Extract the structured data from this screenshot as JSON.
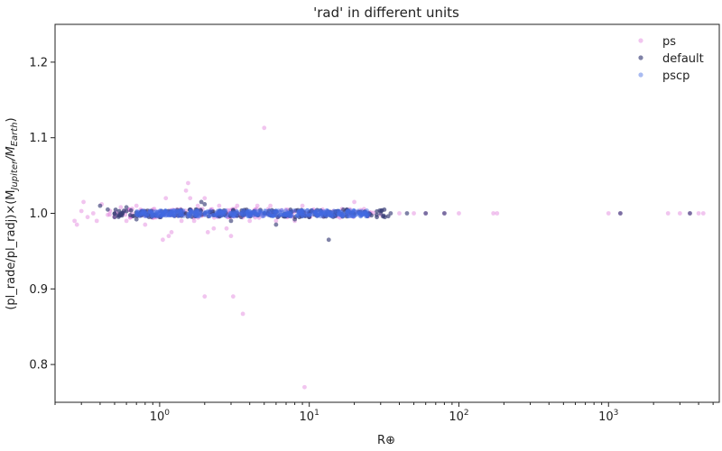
{
  "chart_data": {
    "type": "scatter",
    "title": "'rad' in different units",
    "xlabel": "R⊕",
    "ylabel_main": "(pl_rade/pl_radj)×(M",
    "ylabel_sub1": "Jupiter",
    "ylabel_mid": "/M",
    "ylabel_sub2": "Earth",
    "ylabel_end": ")",
    "xscale": "log",
    "xlim": [
      0.2,
      5500
    ],
    "ylim": [
      0.75,
      1.25
    ],
    "x_ticks": [
      {
        "value": 1,
        "base": "10",
        "exp": "0"
      },
      {
        "value": 10,
        "base": "10",
        "exp": "1"
      },
      {
        "value": 100,
        "base": "10",
        "exp": "2"
      },
      {
        "value": 1000,
        "base": "10",
        "exp": "3"
      }
    ],
    "y_ticks": [
      "0.8",
      "0.9",
      "1.0",
      "1.1",
      "1.2"
    ],
    "grid": false,
    "legend_position": "top-right",
    "series": [
      {
        "name": "ps",
        "color": "#e07fdc",
        "opacity": 0.35,
        "points": [
          [
            0.27,
            0.99
          ],
          [
            0.28,
            0.985
          ],
          [
            0.3,
            1.003
          ],
          [
            0.31,
            1.015
          ],
          [
            0.33,
            0.995
          ],
          [
            0.36,
            1.0
          ],
          [
            0.38,
            0.99
          ],
          [
            0.41,
            1.012
          ],
          [
            0.45,
            0.998
          ],
          [
            0.5,
            0.995
          ],
          [
            0.55,
            1.008
          ],
          [
            0.6,
            0.99
          ],
          [
            0.65,
            1.0
          ],
          [
            0.7,
            1.01
          ],
          [
            0.8,
            0.985
          ],
          [
            0.9,
            1.005
          ],
          [
            1.0,
            0.995
          ],
          [
            1.05,
            0.965
          ],
          [
            1.1,
            1.02
          ],
          [
            1.15,
            0.97
          ],
          [
            1.2,
            0.975
          ],
          [
            1.3,
            1.005
          ],
          [
            1.4,
            0.99
          ],
          [
            1.5,
            1.03
          ],
          [
            1.55,
            1.04
          ],
          [
            1.6,
            1.02
          ],
          [
            1.7,
            0.99
          ],
          [
            1.8,
            1.01
          ],
          [
            2.0,
            0.89
          ],
          [
            2.0,
            1.02
          ],
          [
            2.1,
            0.975
          ],
          [
            2.2,
            1.0
          ],
          [
            2.3,
            0.98
          ],
          [
            2.5,
            1.01
          ],
          [
            2.8,
            0.98
          ],
          [
            3.0,
            0.97
          ],
          [
            3.1,
            0.89
          ],
          [
            3.3,
            1.01
          ],
          [
            3.6,
            0.867
          ],
          [
            4.0,
            0.99
          ],
          [
            4.5,
            1.01
          ],
          [
            5.0,
            1.113
          ],
          [
            5.5,
            1.01
          ],
          [
            6.0,
            0.99
          ],
          [
            7.0,
            1.005
          ],
          [
            8.0,
            0.99
          ],
          [
            9.0,
            1.01
          ],
          [
            9.3,
            0.77
          ],
          [
            10.0,
            1.0
          ],
          [
            12.0,
            1.0
          ],
          [
            15.0,
            1.0
          ],
          [
            20.0,
            1.015
          ],
          [
            25.0,
            1.0
          ],
          [
            30.0,
            0.998
          ],
          [
            40.0,
            1.0
          ],
          [
            50.0,
            1.0
          ],
          [
            60.0,
            1.0
          ],
          [
            80.0,
            1.0
          ],
          [
            100.0,
            1.0
          ],
          [
            170.0,
            1.0
          ],
          [
            180.0,
            1.0
          ],
          [
            1000.0,
            1.0
          ],
          [
            1200.0,
            1.0
          ],
          [
            2500.0,
            1.0
          ],
          [
            3000.0,
            1.0
          ],
          [
            3500.0,
            1.0
          ],
          [
            4000.0,
            1.0
          ],
          [
            4300.0,
            1.0
          ]
        ]
      },
      {
        "name": "default",
        "color": "#3b3f78",
        "opacity": 0.55,
        "points": [
          [
            0.4,
            1.01
          ],
          [
            0.45,
            1.005
          ],
          [
            0.5,
            0.995
          ],
          [
            0.55,
            1.0
          ],
          [
            0.6,
            1.008
          ],
          [
            0.7,
            0.992
          ],
          [
            0.8,
            1.003
          ],
          [
            1.0,
            0.995
          ],
          [
            1.2,
            0.998
          ],
          [
            1.5,
            1.0
          ],
          [
            1.9,
            1.015
          ],
          [
            2.0,
            1.012
          ],
          [
            2.5,
            1.003
          ],
          [
            3.0,
            0.99
          ],
          [
            4.0,
            0.997
          ],
          [
            5.0,
            1.0
          ],
          [
            6.0,
            0.985
          ],
          [
            8.0,
            0.992
          ],
          [
            10.0,
            0.995
          ],
          [
            12.0,
            1.0
          ],
          [
            13.5,
            0.965
          ],
          [
            15.0,
            0.998
          ],
          [
            20.0,
            0.999
          ],
          [
            25.0,
            1.0
          ],
          [
            30.0,
            1.0
          ],
          [
            35.0,
            1.0
          ],
          [
            45.0,
            1.0
          ],
          [
            60.0,
            1.0
          ],
          [
            80.0,
            1.0
          ],
          [
            1200.0,
            1.0
          ],
          [
            3500.0,
            1.0
          ]
        ]
      },
      {
        "name": "pscp",
        "color": "#4169e1",
        "opacity": 0.35,
        "points": [
          [
            0.7,
            0.998
          ],
          [
            0.8,
            1.002
          ],
          [
            0.9,
            0.996
          ],
          [
            1.0,
            1.0
          ],
          [
            1.1,
            0.997
          ],
          [
            1.3,
            1.003
          ],
          [
            1.6,
            0.998
          ],
          [
            2.0,
            1.001
          ],
          [
            2.5,
            0.999
          ],
          [
            3.0,
            1.0
          ],
          [
            4.0,
            0.999
          ],
          [
            5.0,
            1.0
          ],
          [
            7.0,
            0.999
          ],
          [
            9.0,
            1.0
          ],
          [
            11.0,
            1.0
          ],
          [
            12.0,
            1.003
          ],
          [
            13.0,
            0.997
          ],
          [
            14.0,
            1.0
          ],
          [
            18.0,
            1.0
          ],
          [
            25.0,
            1.0
          ]
        ]
      }
    ]
  }
}
